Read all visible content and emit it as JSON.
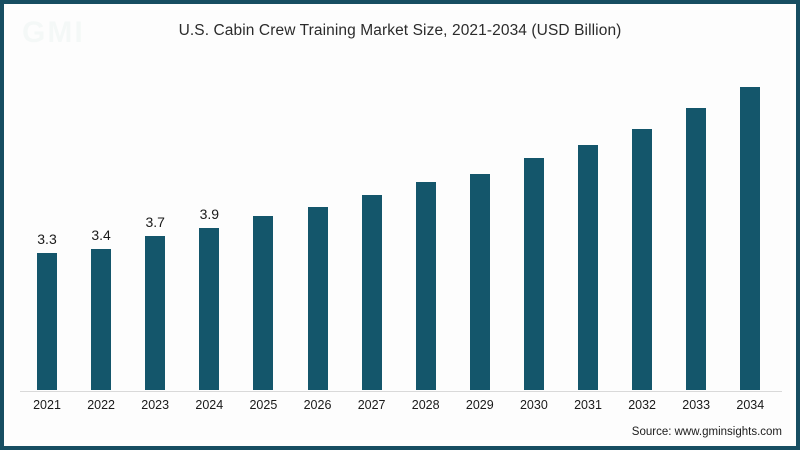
{
  "header": {
    "title": "U.S. Cabin Crew Training Market Size, 2021-2034 (USD Billion)"
  },
  "footer": {
    "source": "Source: www.gminsights.com"
  },
  "colors": {
    "bar": "#14566b",
    "frame_border": "#174e62",
    "axis_line": "#d9d9d9",
    "text": "#1a1a1a"
  },
  "chart_data": {
    "type": "bar",
    "title": "U.S. Cabin Crew Training Market Size, 2021-2034 (USD Billion)",
    "unit": "USD Billion",
    "categories": [
      "2021",
      "2022",
      "2023",
      "2024",
      "2025",
      "2026",
      "2027",
      "2028",
      "2029",
      "2030",
      "2031",
      "2032",
      "2033",
      "2034"
    ],
    "values": [
      3.3,
      3.4,
      3.7,
      3.9,
      4.2,
      4.4,
      4.7,
      5.0,
      5.2,
      5.6,
      5.9,
      6.3,
      6.8,
      7.3
    ],
    "data_labels": [
      "3.3",
      "3.4",
      "3.7",
      "3.9",
      "",
      "",
      "",
      "",
      "",
      "",
      "",
      "",
      "",
      ""
    ],
    "xlabel": "",
    "ylabel": "",
    "ylim": [
      0,
      7.8
    ],
    "grid": false,
    "legend": false,
    "note": "values for 2025-2034 estimated from bar heights; only 2021-2024 carry visible data labels"
  }
}
